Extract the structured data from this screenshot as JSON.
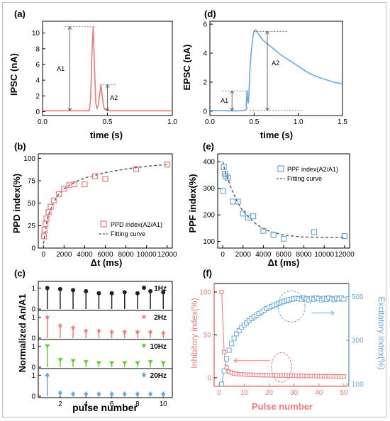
{
  "panels": {
    "a": {
      "label": "(a)",
      "xlabel": "time (s)",
      "ylabel": "IPSC (nA)",
      "xticks": [
        "0.0",
        "0.5",
        "1.0"
      ],
      "yticks": [
        "0",
        "2",
        "4",
        "6",
        "8",
        "10"
      ],
      "annotations": [
        "A1",
        "A2"
      ]
    },
    "b": {
      "label": "(b)",
      "xlabel": "Δt (ms)",
      "ylabel": "PPD index(%)",
      "xticks": [
        "0",
        "2000",
        "4000",
        "6000",
        "8000",
        "10000",
        "12000"
      ],
      "yticks": [
        "0",
        "25",
        "50",
        "75",
        "100"
      ],
      "legend": [
        "PPD index(A2/A1)",
        "Fitting curve"
      ]
    },
    "c": {
      "label": "(c)",
      "xlabel": "pulse number",
      "ylabel": "Normalized An/A1",
      "xticks": [
        "2",
        "4",
        "6",
        "8",
        "10"
      ],
      "yticks": [
        "1",
        "0"
      ],
      "rows": [
        "1Hz",
        "2Hz",
        "10Hz",
        "20Hz"
      ]
    },
    "d": {
      "label": "(d)",
      "xlabel": "time (s)",
      "ylabel": "EPSC (nA)",
      "xticks": [
        "0.0",
        "0.5",
        "1.0",
        "1.5"
      ],
      "yticks": [
        "0",
        "2",
        "4",
        "6"
      ],
      "annotations": [
        "A1",
        "A2"
      ]
    },
    "e": {
      "label": "(e)",
      "xlabel": "Δt (ms)",
      "ylabel": "PPF index(%)",
      "xticks": [
        "0",
        "2000",
        "4000",
        "6000",
        "8000",
        "10000",
        "12000"
      ],
      "yticks": [
        "100",
        "200",
        "300",
        "400"
      ],
      "legend": [
        "PPF index(A2/A1)",
        "Fitting curve"
      ]
    },
    "f": {
      "label": "(f)",
      "xlabel": "Pulse number",
      "ylabel_left": "Inhibitory index(%)",
      "ylabel_right": "Excitatory index(%)",
      "xticks": [
        "0",
        "10",
        "20",
        "30",
        "40",
        "50"
      ],
      "yticks_left": [
        "0",
        "50",
        "100"
      ],
      "yticks_right": [
        "100",
        "300",
        "500"
      ]
    }
  },
  "colors": {
    "red": "#f07a7a",
    "blue": "#6aa8dd",
    "black": "#222222",
    "green": "#66cc33",
    "dash": "#555555"
  },
  "chart_data": [
    {
      "panel": "a",
      "type": "line",
      "xlim": [
        0,
        1.0
      ],
      "ylim": [
        -0.5,
        11.5
      ],
      "series": [
        {
          "x": [
            0,
            0.36,
            0.37,
            0.38,
            0.39,
            0.4,
            0.41,
            0.42,
            0.43,
            0.44,
            0.45,
            0.46,
            0.47,
            0.48,
            0.5,
            0.55,
            1.0
          ],
          "y": [
            0.1,
            0.1,
            1.5,
            7.0,
            10.8,
            6.0,
            1.2,
            0.4,
            0.8,
            2.2,
            3.4,
            2.0,
            0.7,
            0.3,
            0.15,
            0.1,
            0.1
          ]
        }
      ]
    },
    {
      "panel": "b",
      "type": "scatter",
      "xlim": [
        -500,
        12500
      ],
      "ylim": [
        0,
        105
      ],
      "series": [
        {
          "name": "PPD index(A2/A1)",
          "x": [
            50,
            100,
            200,
            300,
            500,
            700,
            1000,
            1500,
            2000,
            2500,
            3000,
            4000,
            5000,
            6000,
            9000,
            12000
          ],
          "y": [
            13,
            20,
            27,
            33,
            40,
            46,
            53,
            60,
            66,
            70,
            71,
            71,
            80,
            77,
            88,
            93
          ]
        },
        {
          "name": "Fitting curve",
          "x": [
            0,
            250,
            500,
            1000,
            1500,
            2000,
            3000,
            4000,
            5000,
            6000,
            8000,
            10000,
            12000
          ],
          "y": [
            5,
            24,
            37,
            51,
            60,
            66,
            73,
            78,
            81,
            84,
            88,
            91,
            93
          ]
        }
      ]
    },
    {
      "panel": "c",
      "type": "bar",
      "categories": [
        1,
        2,
        3,
        4,
        5,
        6,
        7,
        8,
        9,
        10
      ],
      "ylim": [
        0,
        1.2
      ],
      "series": [
        {
          "name": "1Hz",
          "values": [
            1.0,
            0.95,
            0.9,
            0.85,
            0.75,
            0.75,
            0.8,
            0.75,
            0.85,
            0.8
          ]
        },
        {
          "name": "2Hz",
          "values": [
            1.0,
            0.6,
            0.5,
            0.35,
            0.35,
            0.3,
            0.3,
            0.3,
            0.3,
            0.25
          ]
        },
        {
          "name": "10Hz",
          "values": [
            1.0,
            0.35,
            0.3,
            0.25,
            0.2,
            0.2,
            0.2,
            0.2,
            0.25,
            0.2
          ]
        },
        {
          "name": "20Hz",
          "values": [
            1.0,
            0.15,
            0.1,
            0.1,
            0.1,
            0.1,
            0.1,
            0.1,
            0.1,
            0.1
          ]
        }
      ]
    },
    {
      "panel": "d",
      "type": "line",
      "xlim": [
        0,
        1.5
      ],
      "ylim": [
        -0.3,
        6.2
      ],
      "series": [
        {
          "x": [
            0,
            0.38,
            0.41,
            0.42,
            0.43,
            0.44,
            0.46,
            0.5,
            0.55,
            0.6,
            0.7,
            0.8,
            0.9,
            1.0,
            1.1,
            1.2,
            1.3,
            1.4,
            1.5
          ],
          "y": [
            0.05,
            0.05,
            0.5,
            1.4,
            0.6,
            1.0,
            3.5,
            5.5,
            5.3,
            4.9,
            4.4,
            3.9,
            3.5,
            3.1,
            2.7,
            2.4,
            2.2,
            2.0,
            1.9
          ]
        }
      ]
    },
    {
      "panel": "e",
      "type": "scatter",
      "xlim": [
        -500,
        12500
      ],
      "ylim": [
        75,
        430
      ],
      "series": [
        {
          "name": "PPF index(A2/A1)",
          "x": [
            50,
            100,
            200,
            300,
            500,
            1000,
            1500,
            2000,
            2500,
            3000,
            4000,
            5000,
            6000,
            9000,
            12000
          ],
          "y": [
            290,
            380,
            355,
            345,
            340,
            250,
            250,
            205,
            190,
            195,
            140,
            125,
            110,
            135,
            120
          ]
        },
        {
          "name": "Fitting curve",
          "x": [
            0,
            250,
            500,
            1000,
            1500,
            2000,
            3000,
            4000,
            5000,
            6000,
            7000,
            8000,
            10000,
            12000
          ],
          "y": [
            400,
            362,
            335,
            285,
            245,
            215,
            175,
            148,
            134,
            125,
            120,
            117,
            115,
            115
          ]
        }
      ]
    },
    {
      "panel": "f",
      "type": "scatter",
      "xlim": [
        -2,
        52
      ],
      "ylim_left": [
        -10,
        110
      ],
      "ylim_right": [
        90,
        560
      ],
      "series": [
        {
          "name": "Inhibitory index",
          "axis": "left",
          "x": [
            1,
            2,
            3,
            4,
            5,
            6,
            7,
            8,
            9,
            10,
            11,
            12,
            13,
            14,
            15,
            16,
            17,
            18,
            19,
            20,
            21,
            22,
            23,
            24,
            25,
            26,
            27,
            28,
            29,
            30,
            31,
            32,
            33,
            34,
            35,
            36,
            37,
            38,
            39,
            40,
            41,
            42,
            43,
            44,
            45,
            46,
            47,
            48,
            49,
            50
          ],
          "y": [
            100,
            30,
            12,
            7,
            6,
            5,
            4.5,
            4,
            4,
            3.8,
            3.6,
            3.5,
            3.4,
            3.3,
            3.2,
            3.1,
            3.0,
            3.0,
            2.9,
            2.8,
            2.8,
            2.7,
            2.6,
            2.6,
            2.5,
            2.5,
            2.4,
            2.4,
            2.3,
            2.3,
            2.2,
            2.2,
            2.1,
            2.1,
            2.0,
            2.0,
            2.0,
            1.9,
            1.9,
            1.8,
            1.8,
            1.8,
            1.7,
            1.7,
            1.7,
            1.6,
            1.6,
            1.5,
            1.5,
            1.5
          ]
        },
        {
          "name": "Excitatory index",
          "axis": "right",
          "x": [
            1,
            2,
            3,
            4,
            5,
            6,
            7,
            8,
            9,
            10,
            11,
            12,
            13,
            14,
            15,
            16,
            17,
            18,
            19,
            20,
            21,
            22,
            23,
            24,
            25,
            26,
            27,
            28,
            29,
            30,
            31,
            32,
            33,
            34,
            35,
            36,
            37,
            38,
            39,
            40,
            41,
            42,
            43,
            44,
            45,
            46,
            47,
            48,
            49,
            50
          ],
          "y": [
            100,
            160,
            215,
            255,
            285,
            310,
            330,
            345,
            360,
            370,
            380,
            390,
            400,
            408,
            415,
            422,
            430,
            438,
            445,
            450,
            455,
            460,
            465,
            470,
            475,
            478,
            482,
            485,
            488,
            490,
            492,
            490,
            488,
            495,
            490,
            485,
            492,
            488,
            495,
            490,
            485,
            492,
            488,
            495,
            490,
            486,
            493,
            489,
            494,
            488
          ]
        }
      ]
    }
  ]
}
